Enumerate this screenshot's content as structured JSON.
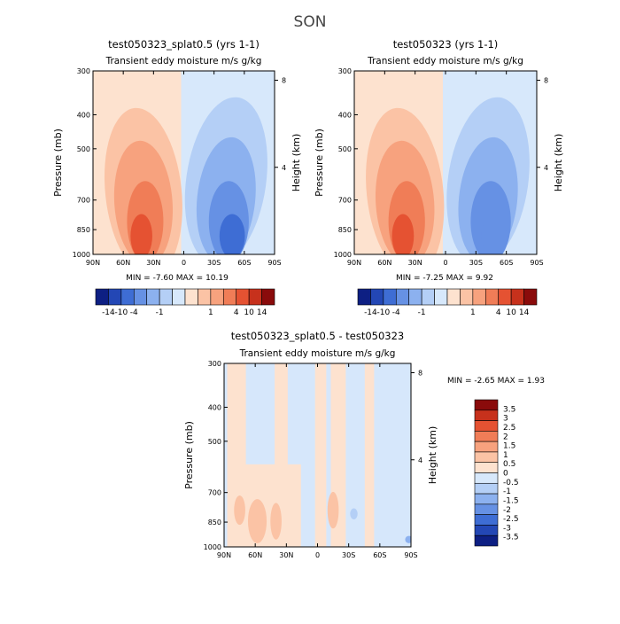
{
  "figure": {
    "title": "SON"
  },
  "colors": {
    "red_scale": [
      "#fde2cf",
      "#fbc3a5",
      "#f7a27e",
      "#f07d57",
      "#e55232",
      "#c7311c",
      "#8a0b0b"
    ],
    "blue_scale": [
      "#d7e8fb",
      "#b4cff6",
      "#8cb1ef",
      "#6691e4",
      "#3e6dd4",
      "#2347b5",
      "#0d1f83"
    ],
    "diff_fill": "#d6e7fb"
  },
  "chart_data": [
    {
      "id": "panel-1",
      "type": "heatmap",
      "title": "test050323_splat0.5 (yrs 1-1)",
      "subtitle": "Transient eddy moisture m/s g/kg",
      "ylabel": "Pressure (mb)",
      "ylabel_right": "Height (km)",
      "x_ticks": [
        "90N",
        "60N",
        "30N",
        "0",
        "30S",
        "60S",
        "90S"
      ],
      "x_values": [
        90,
        60,
        30,
        0,
        -30,
        -60,
        -90
      ],
      "y_ticks": [
        "300",
        "400",
        "500",
        "700",
        "850",
        "1000"
      ],
      "y_values": [
        300,
        400,
        500,
        700,
        850,
        1000
      ],
      "y_scale": "log",
      "ylim": [
        300,
        1000
      ],
      "xlim": [
        90,
        -90
      ],
      "height_ticks": [
        "8",
        "4"
      ],
      "height_values": [
        8,
        4
      ],
      "stats": "MIN =   -7.60   MAX =   10.19",
      "min": -7.6,
      "max": 10.19,
      "colorbar_labels": [
        "-14",
        "-10",
        "-4",
        "-1",
        "1",
        "4",
        "10",
        "14"
      ]
    },
    {
      "id": "panel-2",
      "type": "heatmap",
      "title": "test050323 (yrs 1-1)",
      "subtitle": "Transient eddy moisture m/s g/kg",
      "ylabel": "Pressure (mb)",
      "ylabel_right": "Height (km)",
      "x_ticks": [
        "90N",
        "60N",
        "30N",
        "0",
        "30S",
        "60S",
        "90S"
      ],
      "x_values": [
        90,
        60,
        30,
        0,
        -30,
        -60,
        -90
      ],
      "y_ticks": [
        "300",
        "400",
        "500",
        "700",
        "850",
        "1000"
      ],
      "y_values": [
        300,
        400,
        500,
        700,
        850,
        1000
      ],
      "y_scale": "log",
      "ylim": [
        300,
        1000
      ],
      "xlim": [
        90,
        -90
      ],
      "height_ticks": [
        "8",
        "4"
      ],
      "height_values": [
        8,
        4
      ],
      "stats": "MIN =   -7.25   MAX =    9.92",
      "min": -7.25,
      "max": 9.92,
      "colorbar_labels": [
        "-14",
        "-10",
        "-4",
        "-1",
        "1",
        "4",
        "10",
        "14"
      ]
    },
    {
      "id": "panel-3",
      "type": "heatmap",
      "title": "test050323_splat0.5 - test050323",
      "subtitle": "Transient eddy moisture m/s g/kg",
      "ylabel": "Pressure (mb)",
      "ylabel_right": "Height (km)",
      "x_ticks": [
        "90N",
        "60N",
        "30N",
        "0",
        "30S",
        "60S",
        "90S"
      ],
      "x_values": [
        90,
        60,
        30,
        0,
        -30,
        -60,
        -90
      ],
      "y_ticks": [
        "300",
        "400",
        "500",
        "700",
        "850",
        "1000"
      ],
      "y_values": [
        300,
        400,
        500,
        700,
        850,
        1000
      ],
      "y_scale": "log",
      "ylim": [
        300,
        1000
      ],
      "xlim": [
        90,
        -90
      ],
      "height_ticks": [
        "8",
        "4"
      ],
      "height_values": [
        8,
        4
      ],
      "stats": "MIN =    -2.65   MAX =    1.93",
      "min": -2.65,
      "max": 1.93,
      "colorbar_labels": [
        "3.5",
        "3",
        "2.5",
        "2",
        "1.5",
        "1",
        "0.5",
        "0",
        "-0.5",
        "-1",
        "-1.5",
        "-2",
        "-2.5",
        "-3",
        "-3.5"
      ]
    }
  ]
}
